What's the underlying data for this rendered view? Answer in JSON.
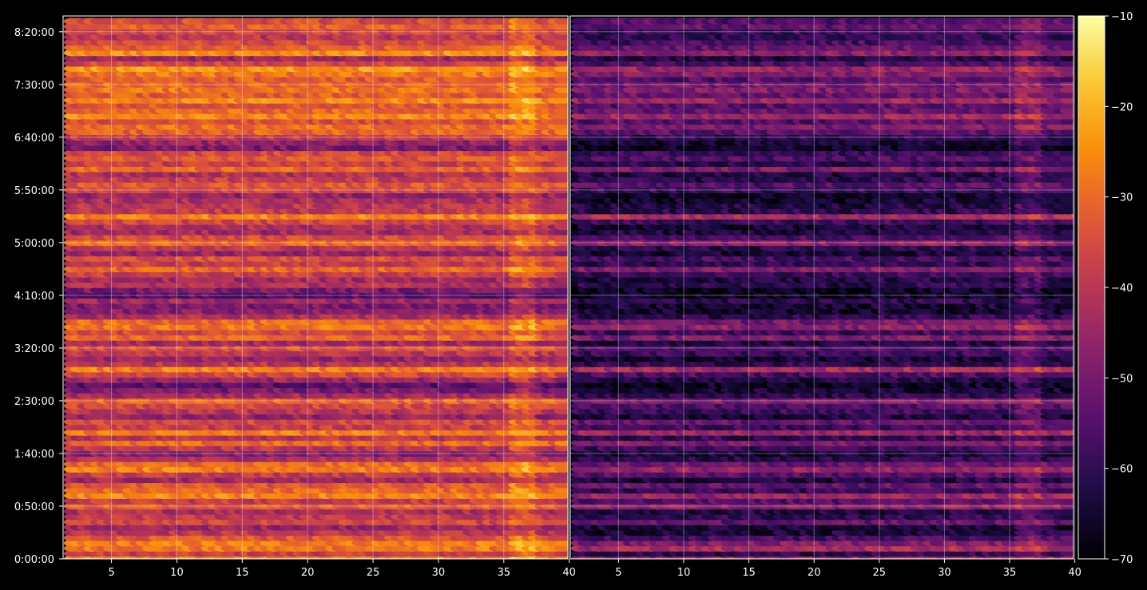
{
  "chart_data": {
    "type": "heatmap",
    "title": "",
    "xlabel": "",
    "ylabel": "",
    "panels": [
      {
        "name": "",
        "xlim": [
          1.3,
          39.9
        ],
        "x_ticks": [
          5,
          10,
          15,
          20,
          25,
          30,
          35,
          40
        ],
        "x_tick_labels": [
          "5",
          "10",
          "15",
          "20",
          "25",
          "30",
          "35",
          "40"
        ]
      },
      {
        "name": "",
        "xlim": [
          1.3,
          39.9
        ],
        "x_ticks": [
          5,
          10,
          15,
          20,
          25,
          30,
          35,
          40
        ],
        "x_tick_labels": [
          "5",
          "10",
          "15",
          "20",
          "25",
          "30",
          "35",
          "40"
        ]
      }
    ],
    "y_ticks_seconds": [
      0,
      3000,
      6000,
      9000,
      12000,
      15000,
      18000,
      21000,
      24000,
      27000,
      30000
    ],
    "y_tick_labels": [
      "0:00:00",
      "0:50:00",
      "1:40:00",
      "2:30:00",
      "3:20:00",
      "4:10:00",
      "5:00:00",
      "5:50:00",
      "6:40:00",
      "7:30:00",
      "8:20:00"
    ],
    "ylim_seconds": [
      0,
      30900
    ],
    "row_interval_seconds": 300,
    "row_levels_dB": {
      "panel_1": [
        -25,
        -38,
        -28,
        -27,
        -33,
        -40,
        -45,
        -36,
        -39,
        -42,
        -32,
        -38,
        -26,
        -30,
        -33,
        -44,
        -38,
        -27,
        -30,
        -42,
        -48,
        -40,
        -30,
        -40,
        -27,
        -38,
        -35,
        -46,
        -40,
        -36,
        -31,
        -44,
        -50,
        -55,
        -45,
        -36,
        -27,
        -40,
        -46,
        -40,
        -34,
        -44,
        -30,
        -36,
        -28,
        -30,
        -42,
        -48,
        -50,
        -44,
        -55,
        -50,
        -41,
        -44,
        -38,
        -30,
        -38,
        -34,
        -46,
        -40,
        -30,
        -35,
        -44,
        -42,
        -36,
        -26,
        -39,
        -40,
        -42,
        -46,
        -36,
        -33,
        -38,
        -42,
        -30,
        -38,
        -33,
        -36,
        -50,
        -46,
        -39,
        -31,
        -29,
        -35,
        -26,
        -30,
        -33,
        -25,
        -32,
        -28,
        -30,
        -33,
        -28,
        -24,
        -36,
        -45,
        -25,
        -32,
        -36,
        -40,
        -37,
        -32,
        -35
      ],
      "panel_2": [
        -42,
        -60,
        -42,
        -48,
        -56,
        -62,
        -64,
        -52,
        -60,
        -62,
        -46,
        -54,
        -44,
        -58,
        -52,
        -62,
        -54,
        -45,
        -52,
        -60,
        -64,
        -58,
        -48,
        -60,
        -44,
        -58,
        -52,
        -62,
        -58,
        -55,
        -48,
        -60,
        -64,
        -66,
        -62,
        -56,
        -42,
        -60,
        -64,
        -58,
        -55,
        -62,
        -48,
        -58,
        -46,
        -50,
        -60,
        -64,
        -64,
        -60,
        -66,
        -66,
        -60,
        -62,
        -58,
        -48,
        -60,
        -56,
        -64,
        -60,
        -46,
        -56,
        -62,
        -64,
        -58,
        -42,
        -60,
        -62,
        -64,
        -66,
        -58,
        -54,
        -60,
        -62,
        -48,
        -60,
        -55,
        -58,
        -66,
        -64,
        -60,
        -54,
        -48,
        -54,
        -44,
        -52,
        -54,
        -44,
        -52,
        -48,
        -50,
        -54,
        -48,
        -44,
        -56,
        -62,
        -46,
        -52,
        -56,
        -60,
        -58,
        -52,
        -54
      ]
    },
    "colorbar": {
      "colormap": "inferno",
      "min": -70,
      "max": -10,
      "ticks": [
        -10,
        -20,
        -30,
        -40,
        -50,
        -60,
        -70
      ],
      "tick_labels": [
        "−10",
        "−20",
        "−30",
        "−40",
        "−50",
        "−60",
        "−70"
      ]
    },
    "grid": true
  }
}
